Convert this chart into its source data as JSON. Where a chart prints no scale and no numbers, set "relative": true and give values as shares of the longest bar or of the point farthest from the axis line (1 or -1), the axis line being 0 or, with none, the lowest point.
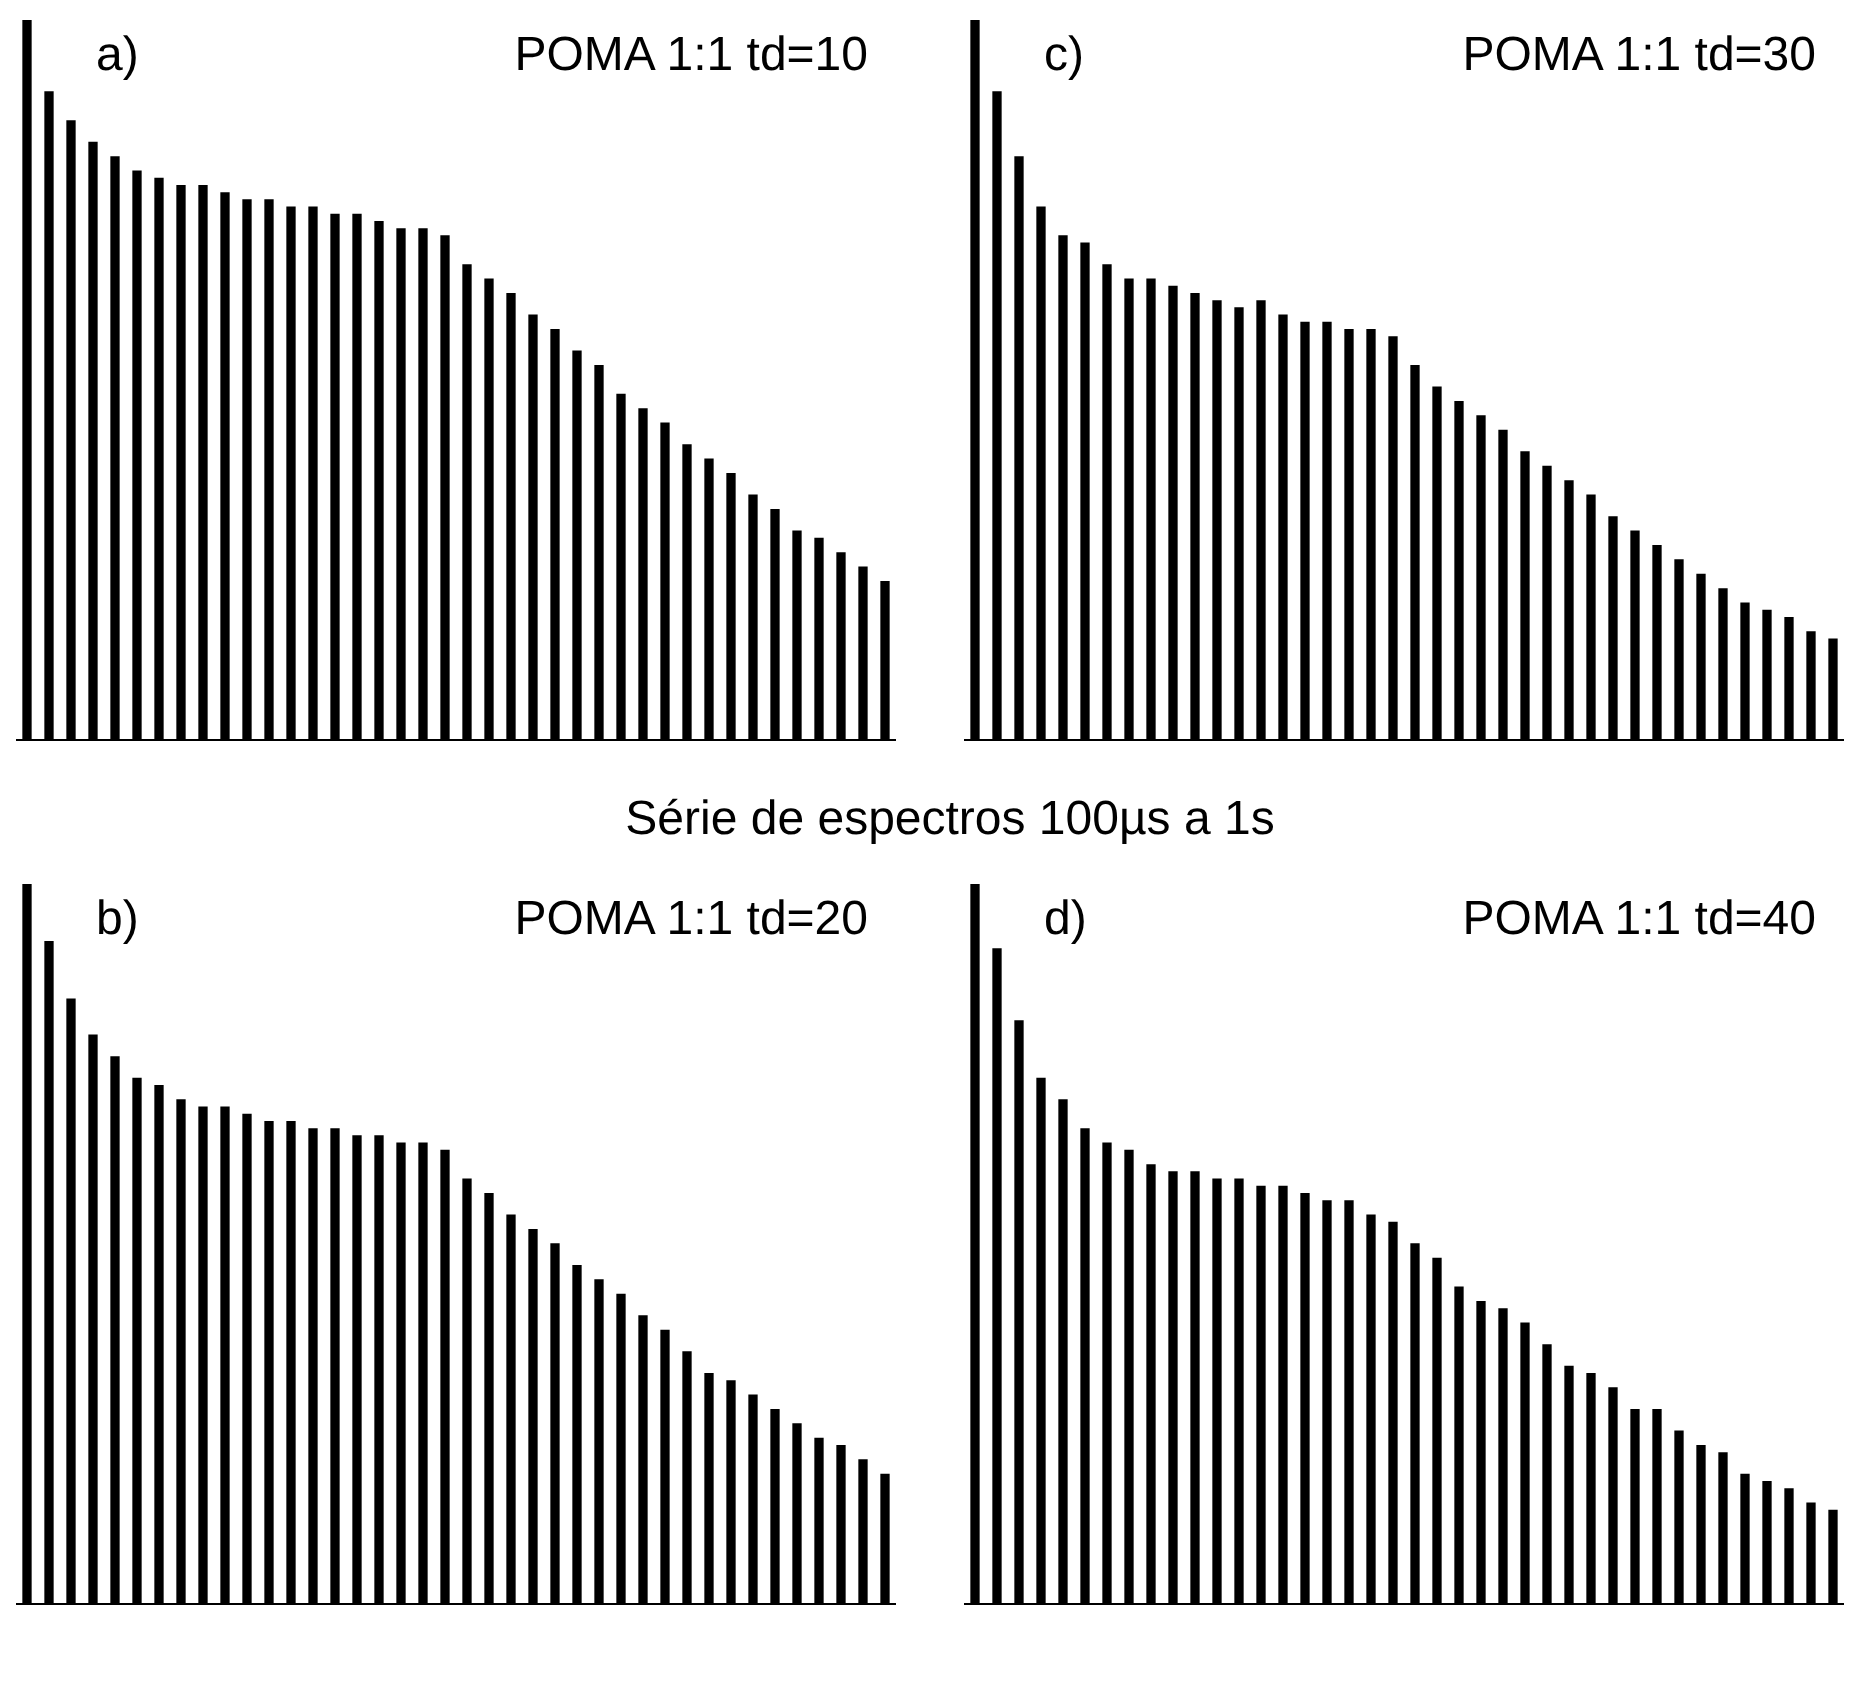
{
  "chart_data": [
    {
      "type": "bar",
      "title": "POMA 1:1 td=10",
      "annotations": [
        "a)",
        "Série de espectros 100µs a 1s"
      ],
      "relative": true,
      "categories": [
        null,
        null,
        null,
        null,
        null,
        null,
        null,
        null,
        null,
        null,
        null,
        null,
        null,
        null,
        null,
        null,
        null,
        null,
        null,
        null,
        null,
        null,
        null,
        null,
        null,
        null,
        null,
        null,
        null,
        null,
        null,
        null,
        null,
        null,
        null,
        null,
        null,
        null,
        null,
        null
      ],
      "color": "#000000",
      "values": [
        1,
        0.9,
        0.86,
        0.83,
        0.81,
        0.79,
        0.78,
        0.77,
        0.77,
        0.76,
        0.75,
        0.75,
        0.74,
        0.74,
        0.73,
        0.73,
        0.72,
        0.71,
        0.71,
        0.7,
        0.66,
        0.64,
        0.62,
        0.59,
        0.57,
        0.54,
        0.52,
        0.48,
        0.46,
        0.44,
        0.41,
        0.39,
        0.37,
        0.34,
        0.32,
        0.29,
        0.28,
        0.26,
        0.24,
        0.22
      ]
    },
    {
      "type": "bar",
      "title": "POMA 1:1 td=30",
      "annotations": [
        "c)"
      ],
      "relative": true,
      "categories": [
        null,
        null,
        null,
        null,
        null,
        null,
        null,
        null,
        null,
        null,
        null,
        null,
        null,
        null,
        null,
        null,
        null,
        null,
        null,
        null,
        null,
        null,
        null,
        null,
        null,
        null,
        null,
        null,
        null,
        null,
        null,
        null,
        null,
        null,
        null,
        null,
        null,
        null,
        null,
        null
      ],
      "color": "#000000",
      "values": [
        1,
        0.9,
        0.81,
        0.74,
        0.7,
        0.69,
        0.66,
        0.64,
        0.64,
        0.63,
        0.62,
        0.61,
        0.6,
        0.61,
        0.59,
        0.58,
        0.58,
        0.57,
        0.57,
        0.56,
        0.52,
        0.49,
        0.47,
        0.45,
        0.43,
        0.4,
        0.38,
        0.36,
        0.34,
        0.31,
        0.29,
        0.27,
        0.25,
        0.23,
        0.21,
        0.19,
        0.18,
        0.17,
        0.15,
        0.14
      ]
    },
    {
      "type": "bar",
      "title": "POMA 1:1 td=20",
      "annotations": [
        "b)"
      ],
      "relative": true,
      "categories": [
        null,
        null,
        null,
        null,
        null,
        null,
        null,
        null,
        null,
        null,
        null,
        null,
        null,
        null,
        null,
        null,
        null,
        null,
        null,
        null,
        null,
        null,
        null,
        null,
        null,
        null,
        null,
        null,
        null,
        null,
        null,
        null,
        null,
        null,
        null,
        null,
        null,
        null,
        null,
        null
      ],
      "color": "#000000",
      "values": [
        1,
        0.92,
        0.84,
        0.79,
        0.76,
        0.73,
        0.72,
        0.7,
        0.69,
        0.69,
        0.68,
        0.67,
        0.67,
        0.66,
        0.66,
        0.65,
        0.65,
        0.64,
        0.64,
        0.63,
        0.59,
        0.57,
        0.54,
        0.52,
        0.5,
        0.47,
        0.45,
        0.43,
        0.4,
        0.38,
        0.35,
        0.32,
        0.31,
        0.29,
        0.27,
        0.25,
        0.23,
        0.22,
        0.2,
        0.18
      ]
    },
    {
      "type": "bar",
      "title": "POMA 1:1 td=40",
      "annotations": [
        "d)"
      ],
      "relative": true,
      "categories": [
        null,
        null,
        null,
        null,
        null,
        null,
        null,
        null,
        null,
        null,
        null,
        null,
        null,
        null,
        null,
        null,
        null,
        null,
        null,
        null,
        null,
        null,
        null,
        null,
        null,
        null,
        null,
        null,
        null,
        null,
        null,
        null,
        null,
        null,
        null,
        null,
        null,
        null,
        null,
        null
      ],
      "color": "#000000",
      "values": [
        1,
        0.91,
        0.81,
        0.73,
        0.7,
        0.66,
        0.64,
        0.63,
        0.61,
        0.6,
        0.6,
        0.59,
        0.59,
        0.58,
        0.58,
        0.57,
        0.56,
        0.56,
        0.54,
        0.53,
        0.5,
        0.48,
        0.44,
        0.42,
        0.41,
        0.39,
        0.36,
        0.33,
        0.32,
        0.3,
        0.27,
        0.27,
        0.24,
        0.22,
        0.21,
        0.18,
        0.17,
        0.16,
        0.14,
        0.13
      ]
    }
  ]
}
